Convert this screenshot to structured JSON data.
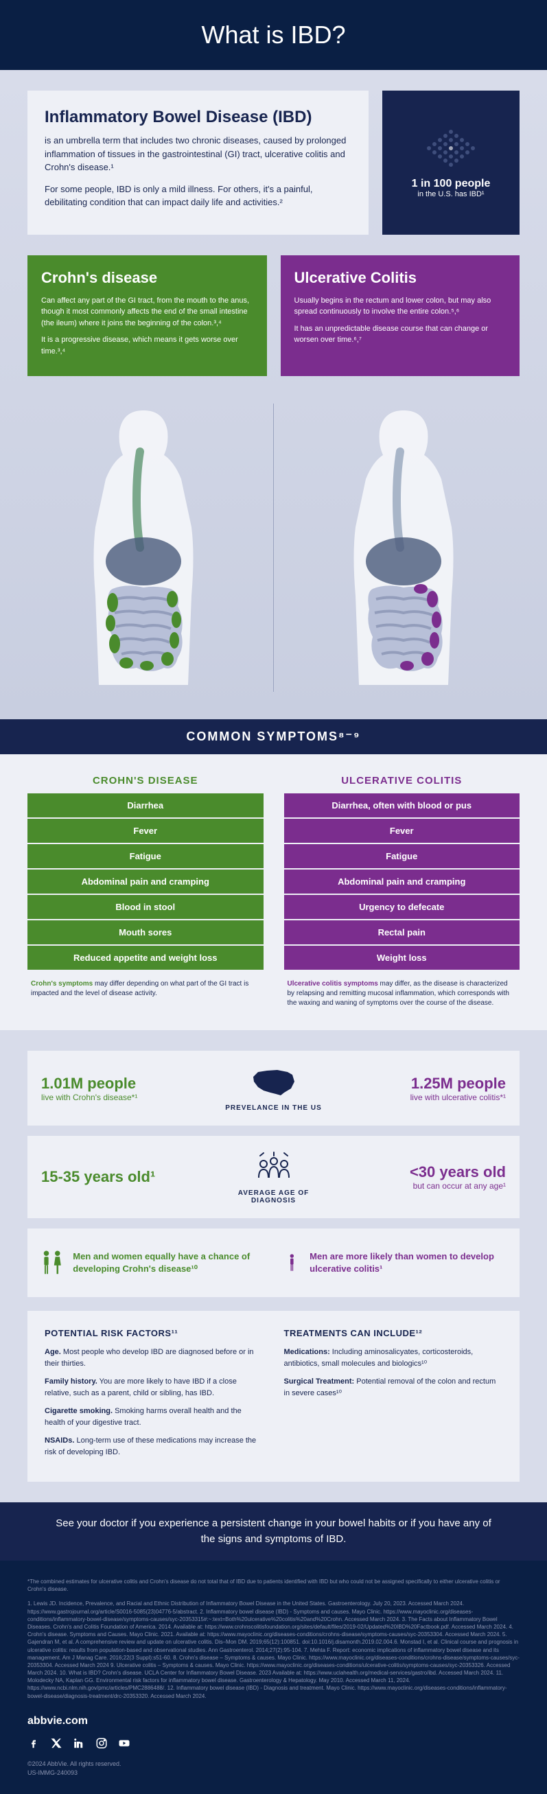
{
  "header": {
    "title": "What is IBD?"
  },
  "intro": {
    "title": "Inflammatory Bowel Disease (IBD)",
    "text1": "is an umbrella term that includes two chronic diseases, caused by prolonged inflammation of tissues in the gastrointestinal (GI) tract, ulcerative colitis and Crohn's disease.¹",
    "text2": "For some people, IBD is only a mild illness. For others, it's a painful, debilitating condition that can impact daily life and activities.²"
  },
  "stat": {
    "main": "1 in 100 people",
    "sub": "in the U.S. has IBD¹"
  },
  "crohns": {
    "title": "Crohn's disease",
    "text1": "Can affect any part of the GI tract, from the mouth to the anus, though it most commonly affects the end of the small intestine (the ileum) where it joins the beginning of the colon.³,⁴",
    "text2": "It is a progressive disease, which means it gets worse over time.³,⁴",
    "color": "#4a8b2c"
  },
  "uc": {
    "title": "Ulcerative Colitis",
    "text1": "Usually begins in the rectum and lower colon, but may also spread continuously to involve the entire colon.⁵,⁶",
    "text2": "It has an unpredictable disease course that can change or worsen over time.⁶,⁷",
    "color": "#7b2d8e"
  },
  "symptoms": {
    "header": "COMMON SYMPTOMS⁸⁻⁹",
    "crohns_title": "CROHN'S DISEASE",
    "uc_title": "ULCERATIVE COLITIS",
    "crohns_list": [
      "Diarrhea",
      "Fever",
      "Fatigue",
      "Abdominal pain and cramping",
      "Blood in stool",
      "Mouth sores",
      "Reduced appetite and weight loss"
    ],
    "uc_list": [
      "Diarrhea, often with blood or pus",
      "Fever",
      "Fatigue",
      "Abdominal pain and cramping",
      "Urgency to defecate",
      "Rectal pain",
      "Weight loss"
    ],
    "crohns_note_bold": "Crohn's symptoms",
    "crohns_note_rest": " may differ depending on what part of the GI tract is impacted and the level of disease activity.",
    "uc_note_bold": "Ulcerative colitis symptoms",
    "uc_note_rest": " may differ, as the disease is characterized by relapsing and remitting mucosal inflammation, which corresponds with the waxing and waning of symptoms over the course of the disease."
  },
  "prevalence": {
    "label": "PREVELANCE IN THE US",
    "crohns_big": "1.01M people",
    "crohns_small": "live with Crohn's disease*¹",
    "uc_big": "1.25M people",
    "uc_small": "live with ulcerative colitis*¹"
  },
  "age": {
    "label": "AVERAGE AGE OF DIAGNOSIS",
    "crohns_big": "15-35 years old¹",
    "uc_big": "<30 years old",
    "uc_small": "but can occur at any age¹"
  },
  "gender": {
    "crohns_text": "Men and women equally have a chance of developing Crohn's disease¹⁰",
    "uc_text": "Men are more likely than women to develop ulcerative colitis¹"
  },
  "risk": {
    "title": "POTENTIAL RISK FACTORS¹¹",
    "items": [
      {
        "bold": "Age.",
        "text": " Most people who develop IBD are diagnosed before or in their thirties."
      },
      {
        "bold": "Family history.",
        "text": " You are more likely to have IBD if a close relative, such as a parent, child or sibling, has IBD."
      },
      {
        "bold": "Cigarette smoking.",
        "text": " Smoking harms overall health and the health of your digestive tract."
      },
      {
        "bold": "NSAIDs.",
        "text": " Long-term use of these medications may increase the risk of developing IBD."
      }
    ]
  },
  "treatments": {
    "title": "TREATMENTS CAN INCLUDE¹²",
    "items": [
      {
        "bold": "Medications:",
        "text": " Including aminosalicyates, corticosteroids, antibiotics, small molecules and biologics¹⁰"
      },
      {
        "bold": "Surgical Treatment:",
        "text": " Potential removal of the colon and rectum in severe cases¹⁰"
      }
    ]
  },
  "cta": "See your doctor if you experience a persistent change in your bowel habits or if you have any of the signs and symptoms of IBD.",
  "footer": {
    "note": "*The combined estimates for ulcerative colitis and Crohn's disease do not total that of IBD due to patients identified with IBD but who could not be assigned specifically to either ulcerative colitis or Crohn's disease.",
    "refs": "1. Lewis JD. Incidence, Prevalence, and Racial and Ethnic Distribution of Inflammatory Bowel Disease in the United States. Gastroenterology. July 20, 2023. Accessed March 2024. https://www.gastrojournal.org/article/S0016-5085(23)04776-5/abstract. 2. Inflammatory bowel disease (IBD) - Symptoms and causes. Mayo Clinic. https://www.mayoclinic.org/diseases-conditions/inflammatory-bowel-disease/symptoms-causes/syc-20353315#:~:text=Both%20ulcerative%20colitis%20and%20Crohn. Accessed March 2024. 3. The Facts about Inflammatory Bowel Diseases. Crohn's and Colitis Foundation of America. 2014. Available at: https://www.crohnscolitisfoundation.org/sites/default/files/2019-02/Updated%20IBD%20Factbook.pdf. Accessed March 2024. 4. Crohn's disease. Symptoms and Causes. Mayo Clinic. 2021. Available at: https://www.mayoclinic.org/diseases-conditions/crohns-disease/symptoms-causes/syc-20353304. Accessed March 2024. 5. Gajendran M, et al. A comprehensive review and update on ulcerative colitis. Dis–Mon DM. 2019;65(12):100851. doi:10.1016/j.disamonth.2019.02.004.6. Monstad I, et al. Clinical course and prognosis in ulcerative colitis: results from population-based and observational studies. Ann Gastroenterol. 2014;27(2):95-104. 7. Mehta F. Report: economic implications of inflammatory bowel disease and its management. Am J Manag Care. 2016;22(3 Suppl):s51-60. 8. Crohn's disease – Symptoms & causes. Mayo Clinic. https://www.mayoclinic.org/diseases-conditions/crohns-disease/symptoms-causes/syc-20353304. Accessed March 2024 9. Ulcerative colitis – Symptoms & causes. Mayo Clinic. https://www.mayoclinic.org/diseases-conditions/ulcerative-colitis/symptoms-causes/syc-20353326. Accessed March 2024. 10. What is IBD? Crohn's disease. UCLA Center for Inflammatory Bowel Disease. 2023 Available at: https://www.uclahealth.org/medical-services/gastro/ibd. Accessed March 2024. 11. Molodecky NA, Kaplan GG. Environmental risk factors for inflammatory bowel disease. Gastroenterology & Hepatology. May 2010. Accessed March 11, 2024. https://www.ncbi.nlm.nih.gov/pmc/articles/PMC2886488/. 12. Inflammatory bowel disease (IBD) - Diagnosis and treatment. Mayo Clinic. https://www.mayoclinic.org/diseases-conditions/inflammatory-bowel-disease/diagnosis-treatment/drc-20353320. Accessed March 2024.",
    "brand": "abbvie.com",
    "legal1": "©2024 AbbVie. All rights reserved.",
    "legal2": "US-IMMG-240093"
  },
  "colors": {
    "navy": "#17244f",
    "dark_navy": "#0a1f44",
    "green": "#4a8b2c",
    "purple": "#7b2d8e",
    "light_bg": "#eef0f6",
    "gradient_bg": "#d8dcea"
  }
}
